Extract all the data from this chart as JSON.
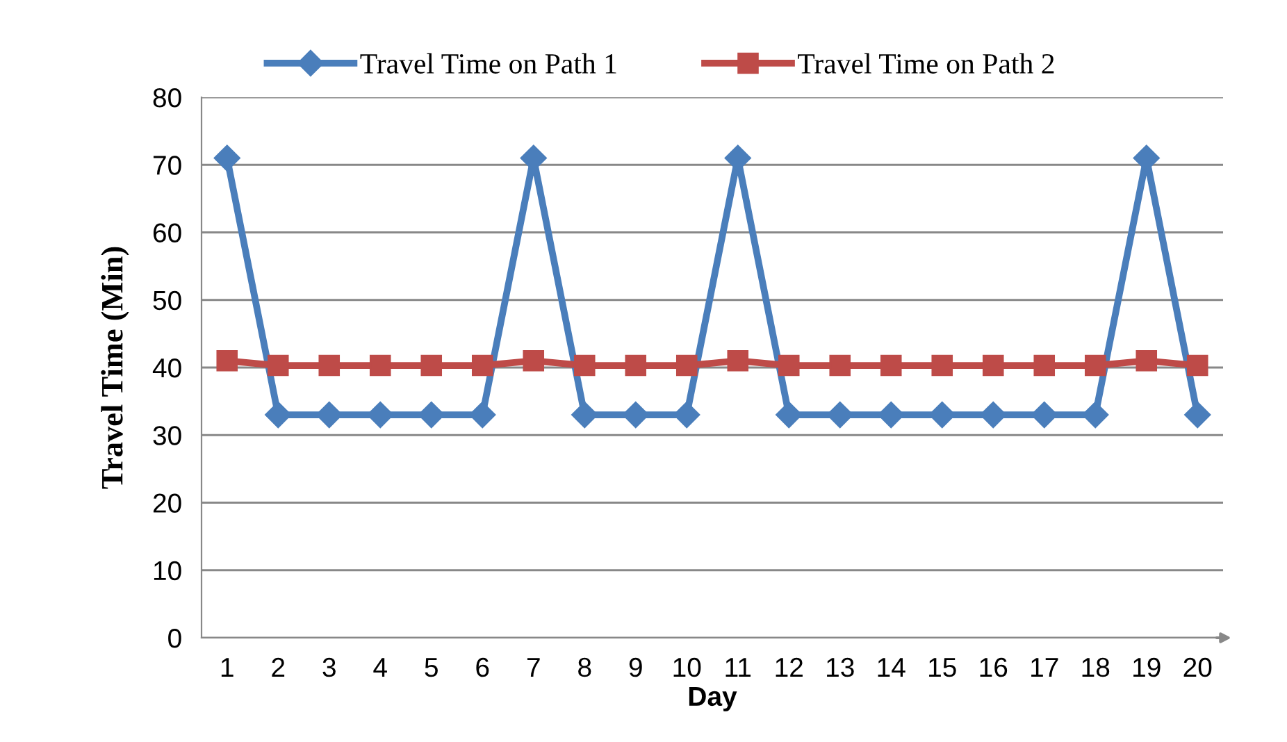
{
  "chart_data": {
    "type": "line",
    "xlabel": "Day",
    "ylabel": "Travel Time (Min)",
    "categories": [
      "1",
      "2",
      "3",
      "4",
      "5",
      "6",
      "7",
      "8",
      "9",
      "10",
      "11",
      "12",
      "13",
      "14",
      "15",
      "16",
      "17",
      "18",
      "19",
      "20"
    ],
    "series": [
      {
        "name": "Travel Time on Path 1",
        "color": "#4a7ebb",
        "marker": "diamond",
        "values": [
          71,
          33,
          33,
          33,
          33,
          33,
          71,
          33,
          33,
          33,
          71,
          33,
          33,
          33,
          33,
          33,
          33,
          33,
          71,
          33
        ]
      },
      {
        "name": "Travel Time on Path 2",
        "color": "#be4b48",
        "marker": "square",
        "values": [
          41,
          40.3,
          40.3,
          40.3,
          40.3,
          40.3,
          41,
          40.3,
          40.3,
          40.3,
          41,
          40.3,
          40.3,
          40.3,
          40.3,
          40.3,
          40.3,
          40.3,
          41,
          40.3
        ]
      }
    ],
    "ylim": [
      0,
      80
    ],
    "yticks": [
      0,
      10,
      20,
      30,
      40,
      50,
      60,
      70,
      80
    ],
    "grid": "y",
    "legend": "top"
  }
}
